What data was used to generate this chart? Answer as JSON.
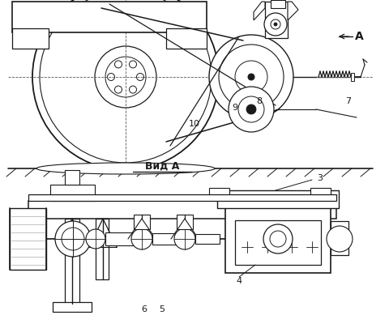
{
  "bg_color": "#ffffff",
  "line_color": "#1a1a1a",
  "fig_width": 4.81,
  "fig_height": 4.05,
  "dpi": 100,
  "title_vid_a": "Вид A",
  "label_A": "A"
}
